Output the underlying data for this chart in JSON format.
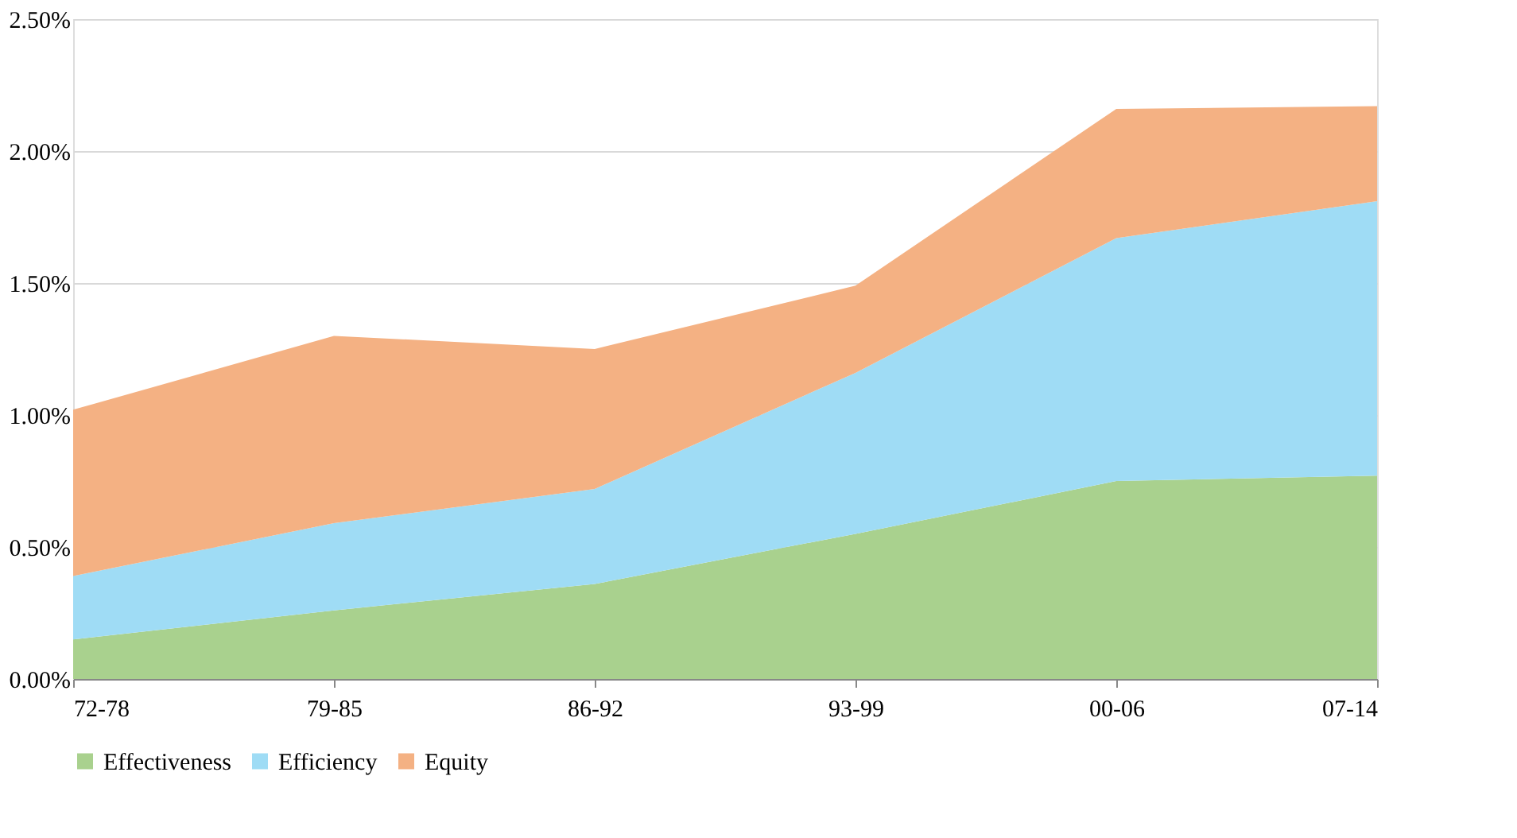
{
  "chart_data": {
    "type": "area",
    "stacked": true,
    "categories": [
      "72-78",
      "79-85",
      "86-92",
      "93-99",
      "00-06",
      "07-14"
    ],
    "series": [
      {
        "name": "Effectiveness",
        "color": "#a9d18e",
        "values": [
          0.15,
          0.26,
          0.36,
          0.55,
          0.75,
          0.77
        ]
      },
      {
        "name": "Efficiency",
        "color": "#9fdcf5",
        "values": [
          0.24,
          0.33,
          0.36,
          0.61,
          0.92,
          1.04
        ]
      },
      {
        "name": "Equity",
        "color": "#f4b183",
        "values": [
          0.63,
          0.71,
          0.53,
          0.33,
          0.49,
          0.36
        ]
      }
    ],
    "ylim": [
      0,
      2.5
    ],
    "yticks": [
      {
        "value": 0,
        "label": "0.00%"
      },
      {
        "value": 0.5,
        "label": "0.50%"
      },
      {
        "value": 1.0,
        "label": "1.00%"
      },
      {
        "value": 1.5,
        "label": "1.50%"
      },
      {
        "value": 2.0,
        "label": "2.00%"
      },
      {
        "value": 2.5,
        "label": "2.50%"
      }
    ],
    "grid": "y",
    "legend": "bottom"
  }
}
